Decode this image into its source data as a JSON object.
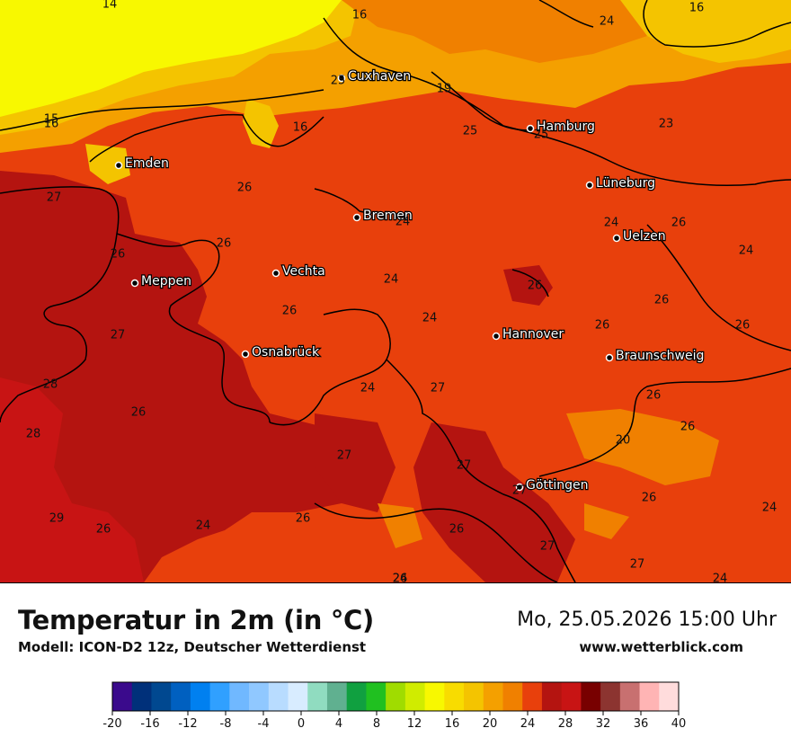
{
  "map": {
    "cities": [
      {
        "name": "Cuxhaven"
      },
      {
        "name": "Hamburg"
      },
      {
        "name": "Emden"
      },
      {
        "name": "Lüneburg"
      },
      {
        "name": "Bremen"
      },
      {
        "name": "Uelzen"
      },
      {
        "name": "Vechta"
      },
      {
        "name": "Meppen"
      },
      {
        "name": "Hannover"
      },
      {
        "name": "Osnabrück"
      },
      {
        "name": "Braunschweig"
      },
      {
        "name": "Göttingen"
      }
    ],
    "value_labels": [
      "14",
      "16",
      "16",
      "24",
      "16",
      "25",
      "19",
      "15",
      "16",
      "25",
      "25",
      "23",
      "27",
      "26",
      "26",
      "24",
      "24",
      "26",
      "26",
      "24",
      "24",
      "26",
      "26",
      "24",
      "26",
      "27",
      "26",
      "26",
      "26",
      "28",
      "24",
      "27",
      "26",
      "26",
      "20",
      "28",
      "27",
      "27",
      "26",
      "27",
      "26",
      "24",
      "29",
      "26",
      "24",
      "26",
      "27",
      "27",
      "26",
      "24",
      "24"
    ]
  },
  "header": {
    "title": "Temperatur in 2m (in °C)",
    "model": "Modell: ICON-D2 12z, Deutscher Wetterdienst",
    "datetime": "Mo, 25.05.2026 15:00 Uhr",
    "website": "www.wetterblick.com"
  },
  "legend": {
    "ticks": [
      "-20",
      "-16",
      "-12",
      "-8",
      "-4",
      "0",
      "4",
      "8",
      "12",
      "16",
      "20",
      "24",
      "28",
      "32",
      "36",
      "40"
    ],
    "colors": [
      "#3a0a8c",
      "#00307a",
      "#004890",
      "#0060c0",
      "#0080f0",
      "#30a0ff",
      "#70b8ff",
      "#90c8ff",
      "#b8dcff",
      "#d8ecff",
      "#90dcc0",
      "#60b090",
      "#10a040",
      "#20c020",
      "#a0dc00",
      "#d0ec00",
      "#f8f800",
      "#f8dc00",
      "#f4c400",
      "#f4a000",
      "#f08000",
      "#e8400c",
      "#b41410",
      "#c81414",
      "#780000",
      "#8c3430",
      "#c87070",
      "#ffb4b4",
      "#ffdcdc"
    ]
  }
}
